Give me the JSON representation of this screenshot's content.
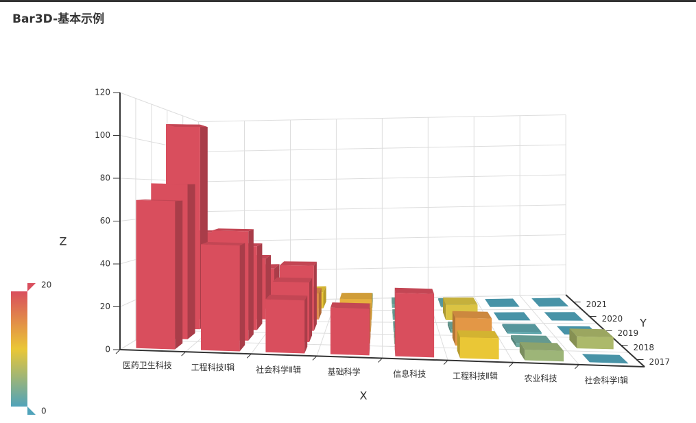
{
  "chart_data": {
    "type": "bar3D",
    "title": "Bar3D-基本示例",
    "x_label": "X",
    "y_label": "Y",
    "z_label": "Z",
    "categories": [
      "医药卫生科技",
      "工程科技Ⅰ辑",
      "社会科学Ⅱ辑",
      "基础科学",
      "信息科技",
      "工程科技Ⅱ辑",
      "农业科技",
      "社会科学Ⅰ辑"
    ],
    "y_categories": [
      "2017",
      "2018",
      "2019",
      "2020",
      "2021"
    ],
    "values": [
      [
        70,
        50,
        25,
        22,
        30,
        10,
        5,
        0
      ],
      [
        78,
        55,
        30,
        15,
        3,
        14,
        2,
        6
      ],
      [
        110,
        45,
        35,
        12,
        2,
        2,
        1,
        0
      ],
      [
        50,
        35,
        15,
        12,
        2,
        9,
        0,
        0
      ],
      [
        40,
        25,
        10,
        5,
        2,
        1,
        0,
        0
      ]
    ],
    "zlim": [
      0,
      120
    ],
    "zticks": [
      0,
      20,
      40,
      60,
      80,
      100,
      120
    ],
    "grid": true,
    "visual_map": {
      "min": 0,
      "max": 20,
      "colors": [
        "#50a3ba",
        "#eac736",
        "#d94e5d"
      ]
    }
  }
}
